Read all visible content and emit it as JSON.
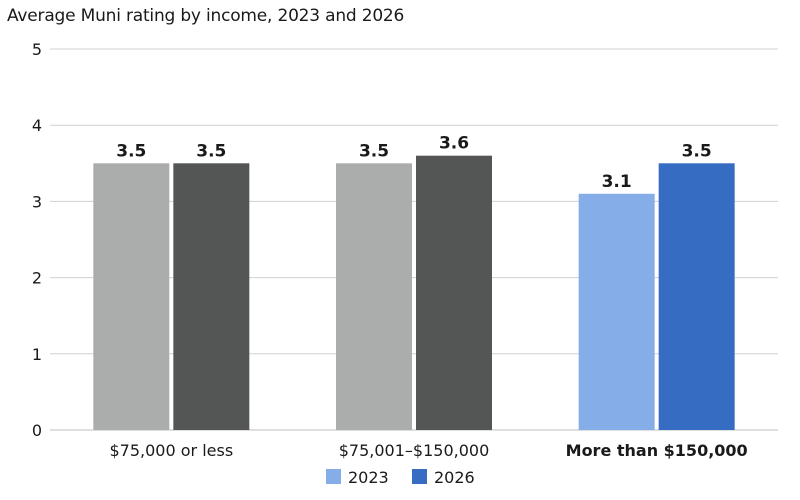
{
  "chart_data": {
    "type": "bar",
    "title": "Average Muni rating by income, 2023 and 2026",
    "xlabel": "",
    "ylabel": "",
    "ylim": [
      0,
      5
    ],
    "yticks": [
      "0",
      "1",
      "2",
      "3",
      "4",
      "5"
    ],
    "grid": true,
    "legend_position": "bottom-center",
    "categories": [
      "$75,000 or less",
      "$75,001–$150,000",
      "More than $150,000"
    ],
    "highlighted_category": "More than $150,000",
    "series": [
      {
        "name": "2023",
        "values": [
          3.5,
          3.5,
          3.1
        ],
        "value_labels": [
          "3.5",
          "3.5",
          "3.1"
        ],
        "bar_colors": [
          "#abadac",
          "#abadac",
          "#85aee9"
        ]
      },
      {
        "name": "2026",
        "values": [
          3.5,
          3.6,
          3.5
        ],
        "value_labels": [
          "3.5",
          "3.6",
          "3.5"
        ],
        "bar_colors": [
          "#545655",
          "#545655",
          "#366dc2"
        ]
      }
    ],
    "legend": [
      {
        "label": "2023",
        "color": "#85aee9"
      },
      {
        "label": "2026",
        "color": "#366dc2"
      }
    ],
    "colors": {
      "gridline": "#d0d0d0",
      "axis": "#bfbfbf",
      "text": "#1a1a1a"
    }
  }
}
